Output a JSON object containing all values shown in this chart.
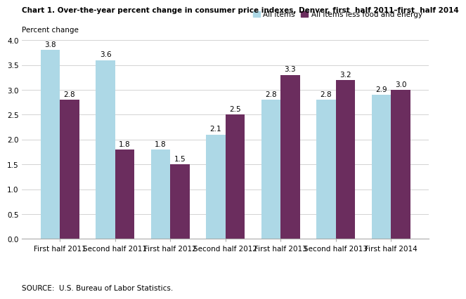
{
  "title": "Chart 1. Over-the-year percent change in consumer price indexes, Denver, first  half 2011–first  half 2014",
  "ylabel": "Percent change",
  "categories": [
    "First half 2011",
    "Second half 2011",
    "First half 2012",
    "Second half 2012",
    "First half 2013",
    "Second half 2013",
    "First half 2014"
  ],
  "all_items": [
    3.8,
    3.6,
    1.8,
    2.1,
    2.8,
    2.8,
    2.9
  ],
  "less_food_energy": [
    2.8,
    1.8,
    1.5,
    2.5,
    3.3,
    3.2,
    3.0
  ],
  "color_all_items": "#ADD8E6",
  "color_less_food": "#6B2D5E",
  "ylim": [
    0.0,
    4.0
  ],
  "yticks": [
    0.0,
    0.5,
    1.0,
    1.5,
    2.0,
    2.5,
    3.0,
    3.5,
    4.0
  ],
  "legend_label_1": "All items",
  "legend_label_2": "All items less food and energy",
  "source_text": "SOURCE:  U.S. Bureau of Labor Statistics.",
  "bar_width": 0.35,
  "title_fontsize": 7.5,
  "label_fontsize": 7.5,
  "tick_fontsize": 7.5,
  "annotation_fontsize": 7.5
}
